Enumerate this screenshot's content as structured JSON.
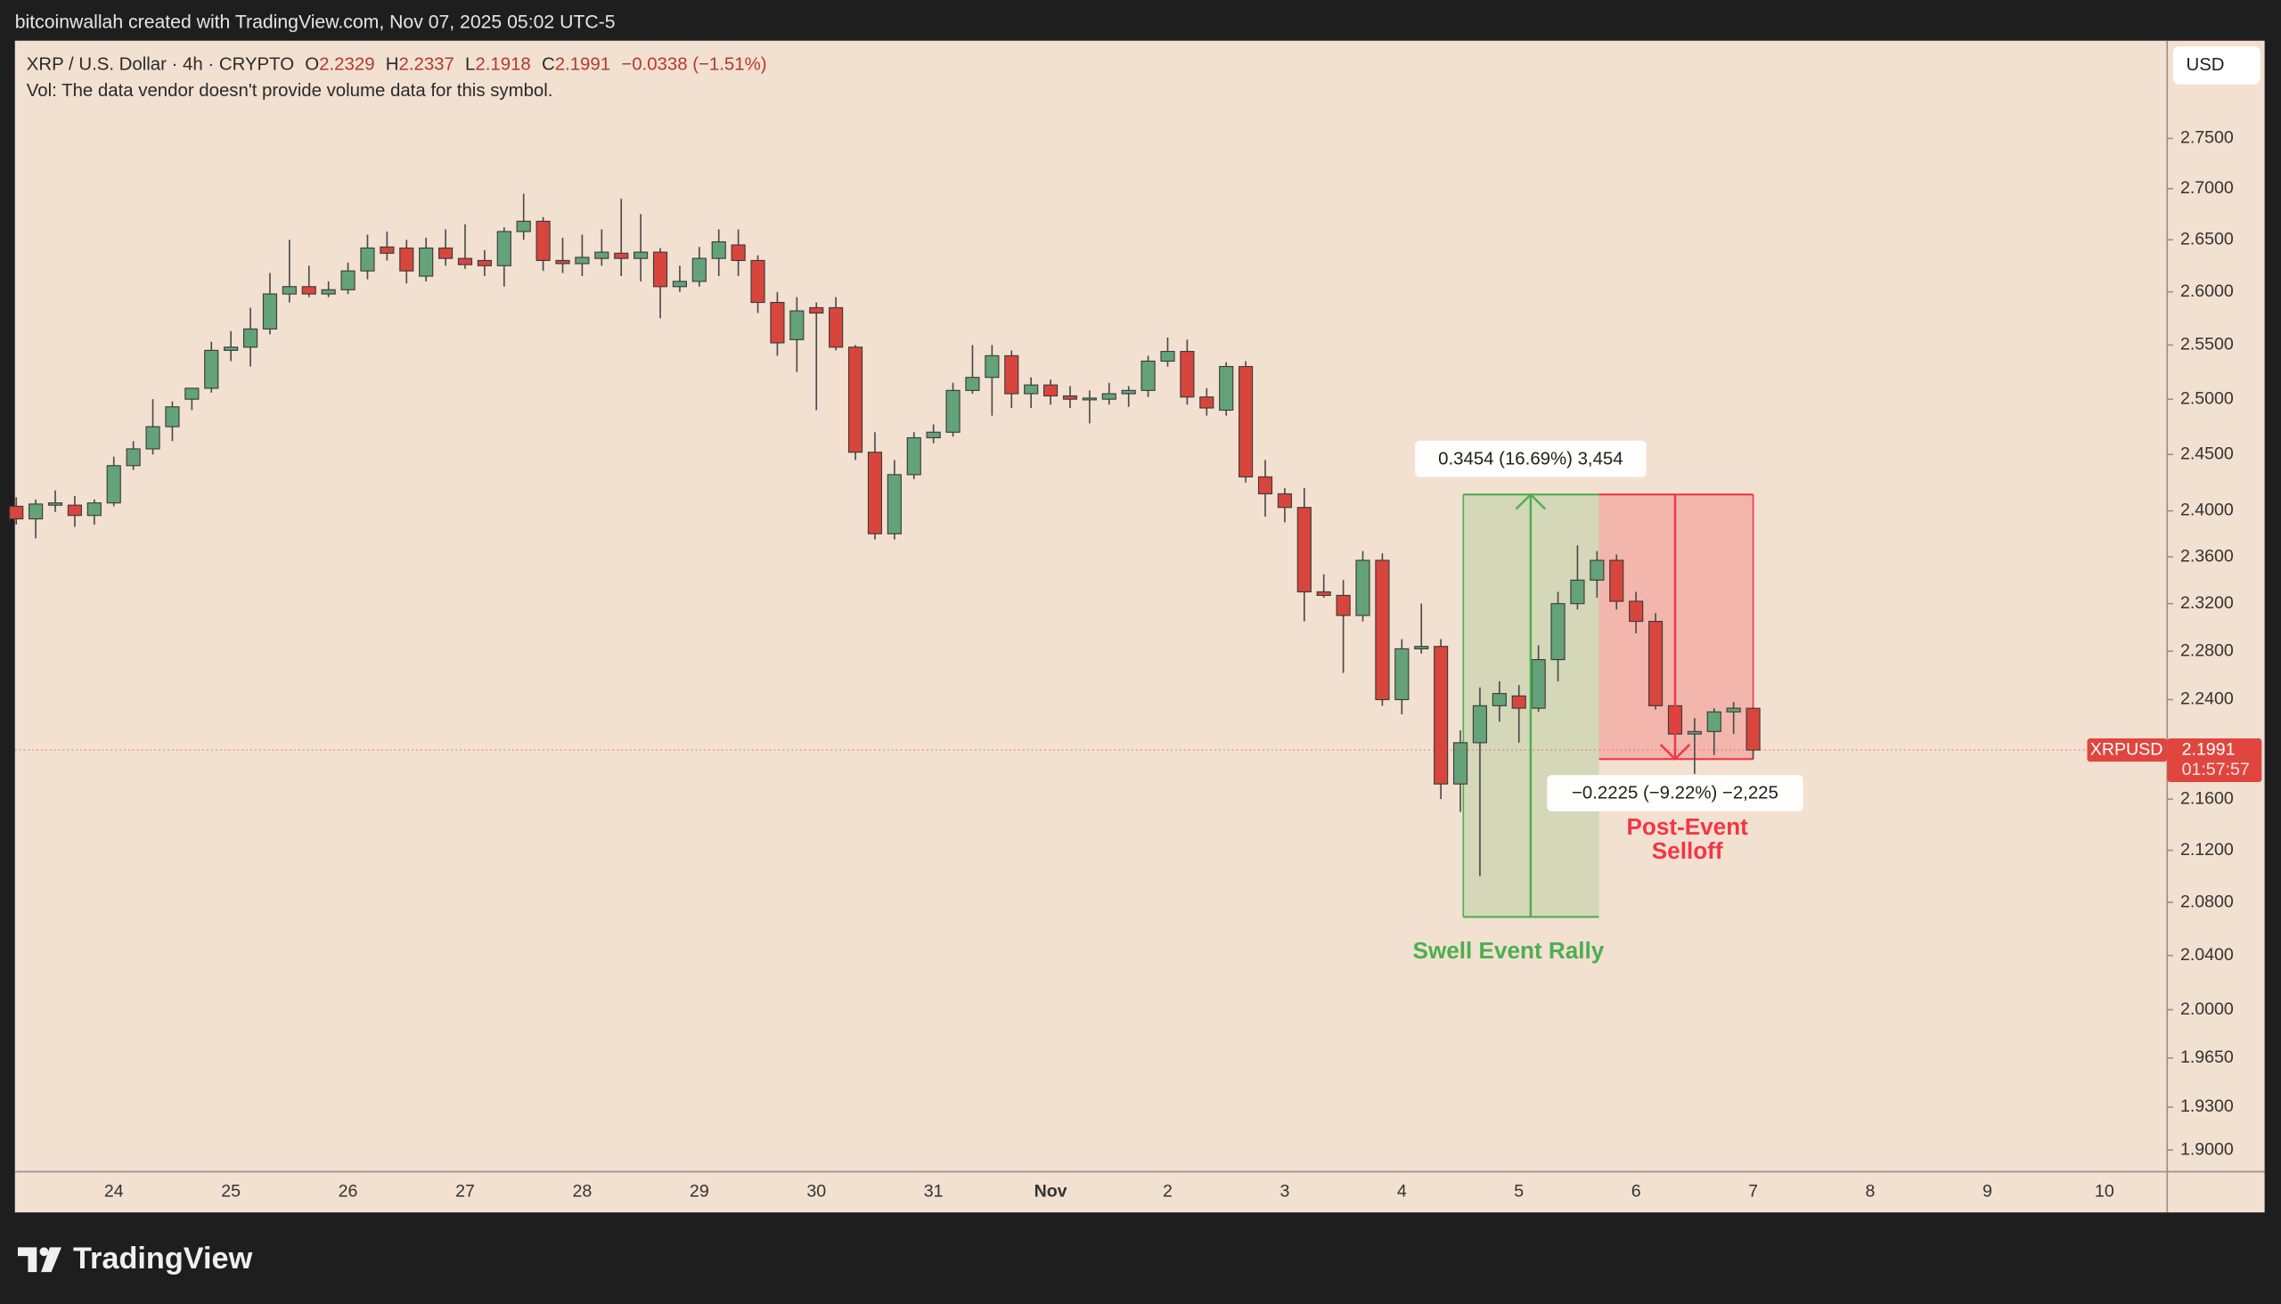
{
  "header": {
    "credit": "bitcoinwallah created with TradingView.com, Nov 07, 2025 05:02 UTC-5",
    "symbol": "XRP / U.S. Dollar · 4h · CRYPTO",
    "open_key": "O",
    "high_key": "H",
    "low_key": "L",
    "close_key": "C",
    "change": "−0.0338 (−1.51%)",
    "volume_note": "Vol: The data vendor doesn't provide volume data for this symbol.",
    "currency": "USD",
    "ticker": "XRPUSD",
    "countdown": "01:57:57"
  },
  "chart_data": {
    "type": "candlestick",
    "log_scale": true,
    "grid": false,
    "up_color": "#64a27a",
    "down_color": "#d8453d",
    "last_price_color": "#e0463f",
    "categories": [
      null,
      null,
      null,
      null,
      null,
      "24",
      null,
      null,
      null,
      null,
      null,
      "25",
      null,
      null,
      null,
      null,
      null,
      "26",
      null,
      null,
      null,
      null,
      null,
      "27",
      null,
      null,
      null,
      null,
      null,
      "28",
      null,
      null,
      null,
      null,
      null,
      "29",
      null,
      null,
      null,
      null,
      null,
      "30",
      null,
      null,
      null,
      null,
      null,
      "31",
      null,
      null,
      null,
      null,
      null,
      "Nov",
      null,
      null,
      null,
      null,
      null,
      "2",
      null,
      null,
      null,
      null,
      null,
      "3",
      null,
      null,
      null,
      null,
      null,
      "4",
      null,
      null,
      null,
      null,
      null,
      "5",
      null,
      null,
      null,
      null,
      null,
      "6",
      null,
      null,
      null,
      null,
      null,
      "7",
      null,
      null,
      null,
      null,
      null,
      "8",
      null,
      null,
      null,
      null,
      null,
      "9",
      null,
      null,
      null,
      null,
      null,
      "10",
      null,
      null
    ],
    "open": [
      2.404,
      2.393,
      2.405,
      2.405,
      2.396,
      2.407,
      2.44,
      2.455,
      2.475,
      2.5,
      2.51,
      2.545,
      2.548,
      2.565,
      2.598,
      2.605,
      2.598,
      2.602,
      2.62,
      2.643,
      2.642,
      2.615,
      2.642,
      2.632,
      2.63,
      2.625,
      2.658,
      2.668,
      2.63,
      2.627,
      2.632,
      2.637,
      2.632,
      2.638,
      2.605,
      2.61,
      2.632,
      2.645,
      2.63,
      2.59,
      2.555,
      2.585,
      2.585,
      2.548,
      2.452,
      2.38,
      2.432,
      2.465,
      2.47,
      2.508,
      2.52,
      2.54,
      2.505,
      2.513,
      2.503,
      2.5,
      2.5,
      2.505,
      2.508,
      2.535,
      2.544,
      2.502,
      2.49,
      2.53,
      2.43,
      2.415,
      2.403,
      2.33,
      2.327,
      2.31,
      2.357,
      2.24,
      2.282,
      2.284,
      2.172,
      2.205,
      2.235,
      2.243,
      2.233,
      2.273,
      2.32,
      2.34,
      2.357,
      2.322,
      2.305,
      2.235,
      2.212,
      2.214,
      2.23,
      2.2329,
      null,
      null,
      null,
      null,
      null,
      null,
      null,
      null,
      null,
      null,
      null,
      null,
      null,
      null,
      null,
      null,
      null,
      null,
      null,
      null
    ],
    "high": [
      2.412,
      2.41,
      2.418,
      2.413,
      2.41,
      2.448,
      2.462,
      2.5,
      2.498,
      2.51,
      2.553,
      2.563,
      2.585,
      2.618,
      2.65,
      2.625,
      2.61,
      2.628,
      2.655,
      2.658,
      2.65,
      2.652,
      2.66,
      2.665,
      2.64,
      2.662,
      2.695,
      2.672,
      2.652,
      2.655,
      2.66,
      2.69,
      2.675,
      2.642,
      2.625,
      2.643,
      2.66,
      2.66,
      2.635,
      2.6,
      2.595,
      2.59,
      2.595,
      2.55,
      2.47,
      2.445,
      2.47,
      2.477,
      2.515,
      2.55,
      2.55,
      2.545,
      2.52,
      2.518,
      2.512,
      2.508,
      2.515,
      2.512,
      2.54,
      2.557,
      2.555,
      2.51,
      2.534,
      2.535,
      2.445,
      2.42,
      2.42,
      2.345,
      2.34,
      2.365,
      2.363,
      2.29,
      2.32,
      2.29,
      2.215,
      2.25,
      2.255,
      2.252,
      2.285,
      2.33,
      2.37,
      2.365,
      2.362,
      2.33,
      2.312,
      2.24,
      2.225,
      2.233,
      2.238,
      2.2337,
      null,
      null,
      null,
      null,
      null,
      null,
      null,
      null,
      null,
      null,
      null,
      null,
      null,
      null,
      null,
      null,
      null,
      null,
      null,
      null
    ],
    "low": [
      2.388,
      2.376,
      2.399,
      2.386,
      2.388,
      2.404,
      2.436,
      2.45,
      2.462,
      2.49,
      2.506,
      2.535,
      2.53,
      2.56,
      2.59,
      2.595,
      2.595,
      2.598,
      2.612,
      2.63,
      2.608,
      2.61,
      2.625,
      2.622,
      2.615,
      2.605,
      2.65,
      2.62,
      2.618,
      2.615,
      2.625,
      2.615,
      2.61,
      2.575,
      2.6,
      2.605,
      2.615,
      2.615,
      2.58,
      2.54,
      2.525,
      2.49,
      2.545,
      2.445,
      2.375,
      2.375,
      2.428,
      2.46,
      2.466,
      2.505,
      2.485,
      2.492,
      2.492,
      2.495,
      2.492,
      2.478,
      2.495,
      2.493,
      2.502,
      2.53,
      2.495,
      2.485,
      2.485,
      2.425,
      2.395,
      2.39,
      2.305,
      2.325,
      2.262,
      2.305,
      2.235,
      2.228,
      2.278,
      2.16,
      2.15,
      2.1,
      2.222,
      2.205,
      2.23,
      2.255,
      2.315,
      2.325,
      2.315,
      2.295,
      2.232,
      2.205,
      2.18,
      2.195,
      2.212,
      2.1918,
      null,
      null,
      null,
      null,
      null,
      null,
      null,
      null,
      null,
      null,
      null,
      null,
      null,
      null,
      null,
      null,
      null,
      null,
      null,
      null
    ],
    "close": [
      2.393,
      2.406,
      2.407,
      2.396,
      2.407,
      2.44,
      2.455,
      2.475,
      2.493,
      2.51,
      2.545,
      2.548,
      2.565,
      2.598,
      2.605,
      2.598,
      2.602,
      2.62,
      2.642,
      2.637,
      2.62,
      2.642,
      2.632,
      2.626,
      2.625,
      2.658,
      2.668,
      2.63,
      2.627,
      2.633,
      2.638,
      2.632,
      2.638,
      2.605,
      2.61,
      2.632,
      2.648,
      2.63,
      2.59,
      2.552,
      2.582,
      2.58,
      2.548,
      2.452,
      2.38,
      2.432,
      2.465,
      2.47,
      2.508,
      2.52,
      2.54,
      2.505,
      2.513,
      2.503,
      2.5,
      2.501,
      2.505,
      2.508,
      2.535,
      2.544,
      2.502,
      2.492,
      2.53,
      2.43,
      2.415,
      2.403,
      2.33,
      2.327,
      2.31,
      2.357,
      2.24,
      2.282,
      2.284,
      2.172,
      2.205,
      2.235,
      2.245,
      2.233,
      2.273,
      2.32,
      2.34,
      2.357,
      2.322,
      2.305,
      2.235,
      2.212,
      2.214,
      2.23,
      2.233,
      2.1991,
      null,
      null,
      null,
      null,
      null,
      null,
      null,
      null,
      null,
      null,
      null,
      null,
      null,
      null,
      null,
      null,
      null,
      null,
      null,
      null
    ],
    "ylim": [
      1.885,
      2.85
    ],
    "yticks": [
      {
        "value": 2.75,
        "label": "2.7500"
      },
      {
        "value": 2.7,
        "label": "2.7000"
      },
      {
        "value": 2.65,
        "label": "2.6500"
      },
      {
        "value": 2.6,
        "label": "2.6000"
      },
      {
        "value": 2.55,
        "label": "2.5500"
      },
      {
        "value": 2.5,
        "label": "2.5000"
      },
      {
        "value": 2.45,
        "label": "2.4500"
      },
      {
        "value": 2.4,
        "label": "2.4000"
      },
      {
        "value": 2.36,
        "label": "2.3600"
      },
      {
        "value": 2.32,
        "label": "2.3200"
      },
      {
        "value": 2.28,
        "label": "2.2800"
      },
      {
        "value": 2.24,
        "label": "2.2400"
      },
      {
        "value": 2.16,
        "label": "2.1600"
      },
      {
        "value": 2.12,
        "label": "2.1200"
      },
      {
        "value": 2.08,
        "label": "2.0800"
      },
      {
        "value": 2.04,
        "label": "2.0400"
      },
      {
        "value": 2,
        "label": "2.0000"
      },
      {
        "value": 1.965,
        "label": "1.9650"
      },
      {
        "value": 1.93,
        "label": "1.9300"
      },
      {
        "value": 1.9,
        "label": "1.9000"
      }
    ],
    "measures": [
      {
        "label": "0.3454 (16.69%) 3,454",
        "from": 2.069,
        "to": 2.4144,
        "color": "#4caf50"
      },
      {
        "label": "−0.2225 (−9.22%) −2,225",
        "from": 2.4144,
        "to": 2.1919,
        "color": "#f23645"
      }
    ],
    "annotations": [
      {
        "lines": [
          "Swell Event Rally"
        ],
        "color": "#4caf50"
      },
      {
        "lines": [
          "Post-Event",
          "Selloff"
        ],
        "color": "#f23645"
      }
    ]
  },
  "footer": {
    "brand": "TradingView"
  }
}
